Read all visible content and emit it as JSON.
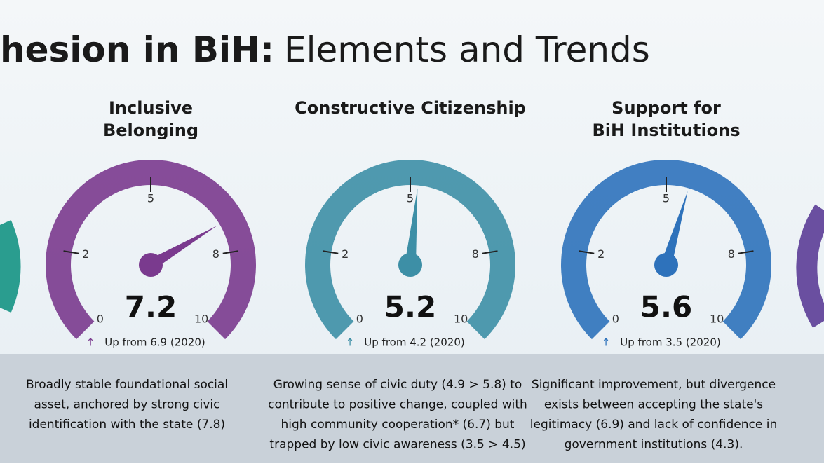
{
  "header": {
    "title_bold": "hesion in BiH:",
    "title_light": "Elements and Trends"
  },
  "chart_data": [
    {
      "type": "gauge",
      "title": [
        "Inclusive",
        "Belonging"
      ],
      "value": 7.2,
      "xlim": [
        0,
        10
      ],
      "xticks": [
        0,
        2,
        5,
        8,
        10
      ],
      "color": "#7a3a8e",
      "change": "Up from 6.9 (2020)",
      "description": [
        "Broadly stable foundational social",
        "asset, anchored by strong civic",
        "identification with the state (7.8)"
      ]
    },
    {
      "type": "gauge",
      "title": [
        "Constructive Citizenship"
      ],
      "value": 5.2,
      "xlim": [
        0,
        10
      ],
      "xticks": [
        0,
        2,
        5,
        8,
        10
      ],
      "color": "#3d8fa6",
      "change": "Up from 4.2 (2020)",
      "description": [
        "Growing sense of civic duty (4.9 > 5.8) to",
        "contribute to positive change, coupled with",
        "high community cooperation* (6.7) but",
        "trapped by low civic awareness (3.5 > 4.5)"
      ]
    },
    {
      "type": "gauge",
      "title": [
        "Support for",
        "BiH Institutions"
      ],
      "value": 5.6,
      "xlim": [
        0,
        10
      ],
      "xticks": [
        0,
        2,
        5,
        8,
        10
      ],
      "color": "#2e72bb",
      "change": "Up from 3.5 (2020)",
      "description": [
        "Significant improvement, but divergence",
        "exists between accepting the state's",
        "legitimacy (6.9) and lack of confidence in",
        "government institutions (4.3)."
      ]
    }
  ]
}
